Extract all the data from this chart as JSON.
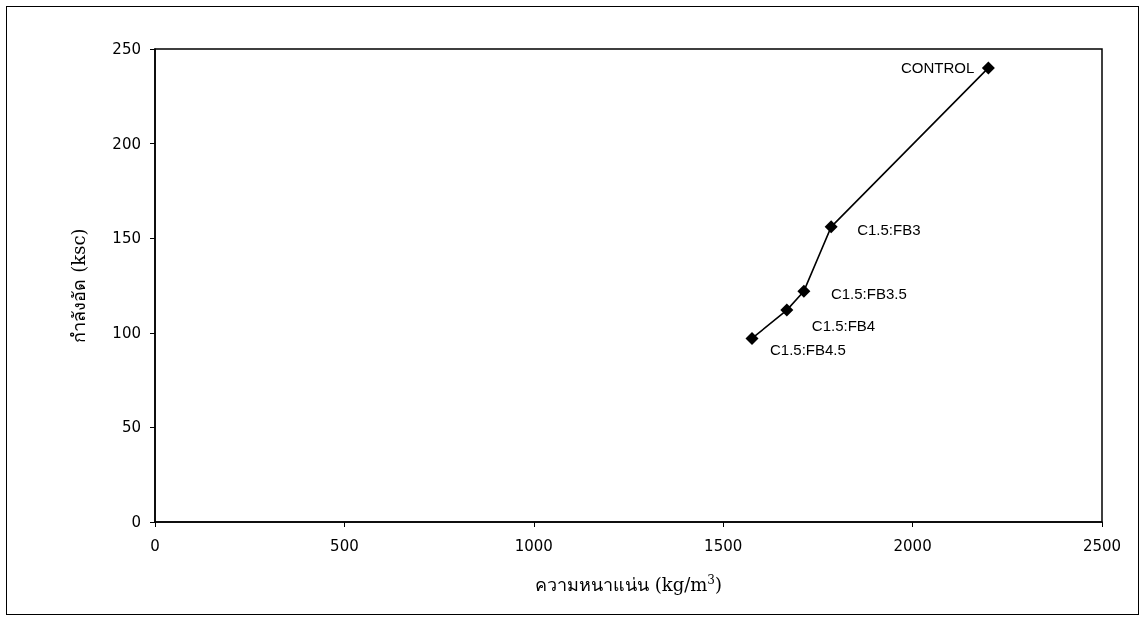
{
  "chart_data": {
    "type": "line",
    "xlabel": "ความหนาแน่น (kg/m$^{3}$)",
    "ylabel": "กำลังอัด (ksc)",
    "x": [
      1576,
      1668,
      1713,
      1785,
      2200
    ],
    "series": [
      {
        "color": "#000000",
        "values": [
          97,
          112,
          122,
          156,
          240
        ]
      }
    ],
    "xlim": [
      0,
      2500
    ],
    "xticks": [
      0,
      500,
      1000,
      1500,
      2000,
      2500
    ],
    "ylim": [
      0,
      250
    ],
    "yticks": [
      0,
      50,
      100,
      150,
      200,
      250
    ],
    "grid": false,
    "marker": "diamond",
    "line_style": "solid",
    "annotations": [
      {
        "text": "C1.5:FB4.5",
        "x": 1576,
        "y": 97
      },
      {
        "text": "C1.5:FB4",
        "x": 1668,
        "y": 112
      },
      {
        "text": "C1.5:FB3.5",
        "x": 1713,
        "y": 122
      },
      {
        "text": "C1.5:FB3",
        "x": 1785,
        "y": 156
      },
      {
        "text": "CONTROL",
        "x": 2200,
        "y": 240
      }
    ]
  }
}
